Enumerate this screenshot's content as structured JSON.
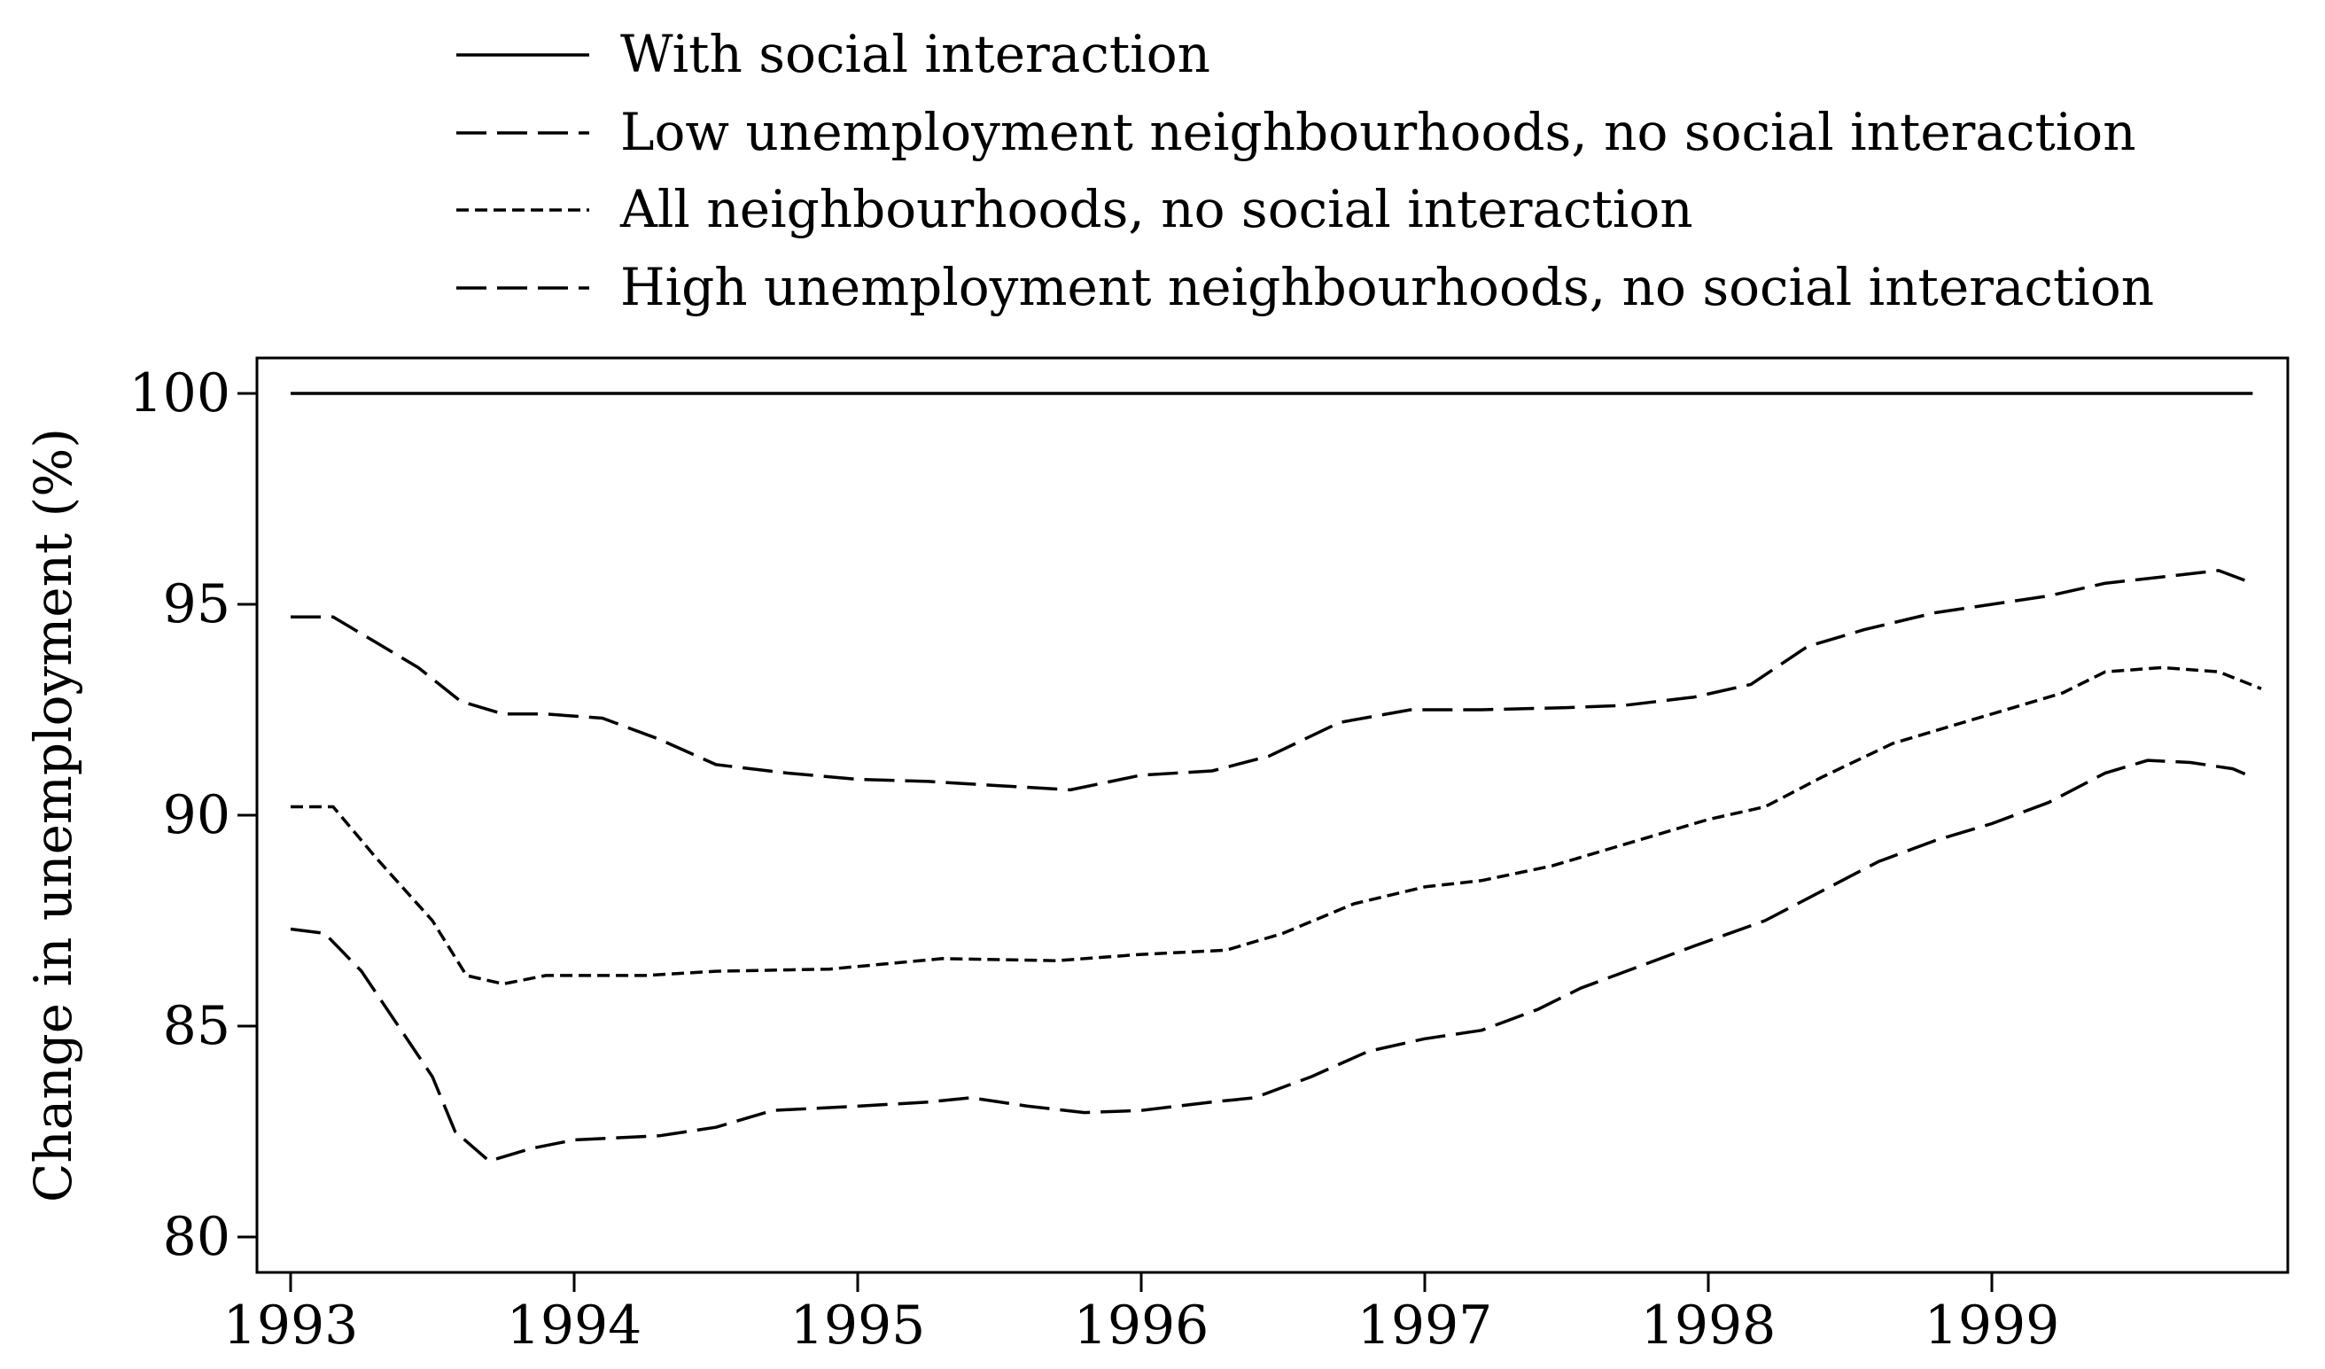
{
  "chart_data": {
    "type": "line",
    "title": "",
    "xlabel": "",
    "ylabel": "Change in unemployment (%)",
    "xlim": [
      1993,
      1999.95
    ],
    "ylim": [
      79.5,
      101.3
    ],
    "x_ticks": [
      "1993",
      "1994",
      "1995",
      "1996",
      "1997",
      "1998",
      "1999"
    ],
    "y_ticks": [
      "80",
      "85",
      "90",
      "95",
      "100"
    ],
    "grid": false,
    "legend": {
      "placement": "top, above plot"
    },
    "series": [
      {
        "name": "With social interaction",
        "style": "solid",
        "color": "#000000",
        "points": [
          [
            1993.0,
            100.0
          ],
          [
            1999.92,
            100.0
          ]
        ]
      },
      {
        "name": "Low unemployment neighbourhoods, no social interaction",
        "style": "long-dash",
        "color": "#000000",
        "points": [
          [
            1993.0,
            94.7
          ],
          [
            1993.15,
            94.7
          ],
          [
            1993.3,
            94.1
          ],
          [
            1993.45,
            93.5
          ],
          [
            1993.6,
            92.7
          ],
          [
            1993.75,
            92.4
          ],
          [
            1993.9,
            92.4
          ],
          [
            1994.1,
            92.3
          ],
          [
            1994.3,
            91.8
          ],
          [
            1994.5,
            91.2
          ],
          [
            1994.75,
            91.0
          ],
          [
            1995.0,
            90.85
          ],
          [
            1995.25,
            90.8
          ],
          [
            1995.5,
            90.7
          ],
          [
            1995.75,
            90.6
          ],
          [
            1996.0,
            90.95
          ],
          [
            1996.25,
            91.05
          ],
          [
            1996.45,
            91.4
          ],
          [
            1996.7,
            92.2
          ],
          [
            1996.95,
            92.5
          ],
          [
            1997.2,
            92.5
          ],
          [
            1997.5,
            92.55
          ],
          [
            1997.7,
            92.6
          ],
          [
            1997.95,
            92.8
          ],
          [
            1998.15,
            93.1
          ],
          [
            1998.35,
            94.0
          ],
          [
            1998.55,
            94.4
          ],
          [
            1998.8,
            94.8
          ],
          [
            1999.0,
            95.0
          ],
          [
            1999.2,
            95.2
          ],
          [
            1999.4,
            95.5
          ],
          [
            1999.6,
            95.65
          ],
          [
            1999.8,
            95.8
          ],
          [
            1999.92,
            95.5
          ]
        ]
      },
      {
        "name": "All neighbourhoods, no social interaction",
        "style": "short-dash",
        "color": "#000000",
        "points": [
          [
            1993.0,
            90.2
          ],
          [
            1993.15,
            90.2
          ],
          [
            1993.3,
            89.0
          ],
          [
            1993.5,
            87.5
          ],
          [
            1993.62,
            86.2
          ],
          [
            1993.75,
            86.0
          ],
          [
            1993.9,
            86.2
          ],
          [
            1994.25,
            86.2
          ],
          [
            1994.5,
            86.3
          ],
          [
            1994.9,
            86.35
          ],
          [
            1995.3,
            86.6
          ],
          [
            1995.7,
            86.55
          ],
          [
            1996.0,
            86.7
          ],
          [
            1996.3,
            86.8
          ],
          [
            1996.5,
            87.2
          ],
          [
            1996.75,
            87.9
          ],
          [
            1997.0,
            88.3
          ],
          [
            1997.2,
            88.45
          ],
          [
            1997.45,
            88.8
          ],
          [
            1997.7,
            89.3
          ],
          [
            1998.0,
            89.9
          ],
          [
            1998.2,
            90.2
          ],
          [
            1998.4,
            90.9
          ],
          [
            1998.65,
            91.7
          ],
          [
            1998.85,
            92.1
          ],
          [
            1999.05,
            92.5
          ],
          [
            1999.25,
            92.9
          ],
          [
            1999.4,
            93.4
          ],
          [
            1999.6,
            93.5
          ],
          [
            1999.8,
            93.4
          ],
          [
            1999.95,
            93.0
          ]
        ]
      },
      {
        "name": "High unemployment neighbourhoods, no social interaction",
        "style": "long-dash",
        "color": "#000000",
        "points": [
          [
            1993.0,
            87.3
          ],
          [
            1993.12,
            87.2
          ],
          [
            1993.25,
            86.3
          ],
          [
            1993.4,
            84.8
          ],
          [
            1993.5,
            83.8
          ],
          [
            1993.58,
            82.5
          ],
          [
            1993.7,
            81.8
          ],
          [
            1993.85,
            82.1
          ],
          [
            1994.0,
            82.3
          ],
          [
            1994.3,
            82.4
          ],
          [
            1994.5,
            82.6
          ],
          [
            1994.7,
            83.0
          ],
          [
            1995.0,
            83.1
          ],
          [
            1995.25,
            83.2
          ],
          [
            1995.4,
            83.3
          ],
          [
            1995.6,
            83.1
          ],
          [
            1995.8,
            82.95
          ],
          [
            1996.0,
            83.0
          ],
          [
            1996.25,
            83.2
          ],
          [
            1996.4,
            83.3
          ],
          [
            1996.6,
            83.8
          ],
          [
            1996.8,
            84.4
          ],
          [
            1997.0,
            84.7
          ],
          [
            1997.2,
            84.9
          ],
          [
            1997.4,
            85.4
          ],
          [
            1997.55,
            85.9
          ],
          [
            1997.75,
            86.4
          ],
          [
            1997.95,
            86.9
          ],
          [
            1998.2,
            87.5
          ],
          [
            1998.4,
            88.2
          ],
          [
            1998.6,
            88.9
          ],
          [
            1998.8,
            89.4
          ],
          [
            1999.0,
            89.8
          ],
          [
            1999.2,
            90.3
          ],
          [
            1999.4,
            91.0
          ],
          [
            1999.55,
            91.3
          ],
          [
            1999.7,
            91.25
          ],
          [
            1999.85,
            91.1
          ],
          [
            1999.92,
            90.9
          ]
        ]
      }
    ]
  }
}
